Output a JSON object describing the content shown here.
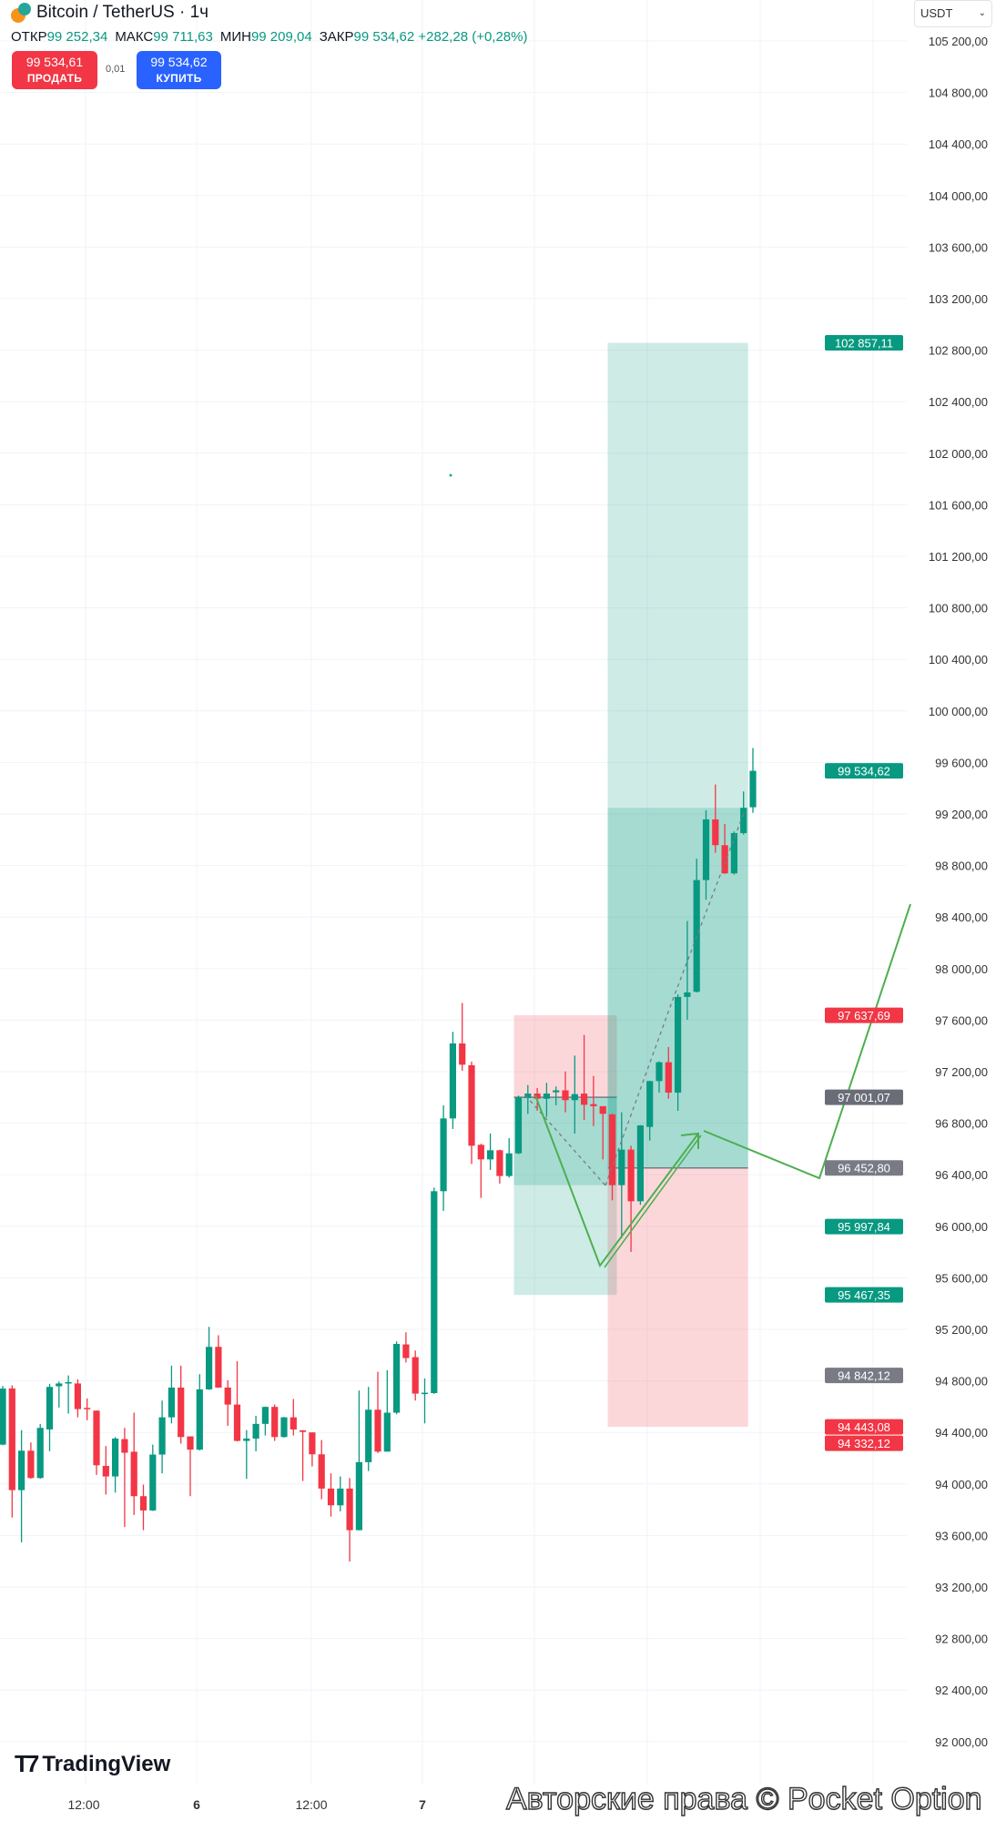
{
  "header": {
    "symbol": "Bitcoin / TetherUS · 1ч",
    "ohlc": [
      {
        "label": "ОТКР",
        "value": "99 252,34"
      },
      {
        "label": "МАКС",
        "value": "99 711,63"
      },
      {
        "label": "МИН",
        "value": "99 209,04"
      },
      {
        "label": "ЗАКР",
        "value": "99 534,62 +282,28 (+0,28%)"
      }
    ],
    "sell": {
      "price": "99 534,61",
      "label": "ПРОДАТЬ"
    },
    "spread": "0,01",
    "buy": {
      "price": "99 534,62",
      "label": "КУПИТЬ"
    }
  },
  "currency_select": {
    "value": "USDT",
    "icon": "chevron-down-icon"
  },
  "branding": {
    "logo": "TradingView",
    "watermark": "Авторские права © Pocket Option"
  },
  "colors": {
    "up": "#089981",
    "down": "#f23645",
    "neutral": "#787b86",
    "buy": "#2962ff",
    "drawing": "#4caf50"
  },
  "chart_data": {
    "type": "candlestick",
    "interval": "1ч",
    "ylim": [
      92000,
      105200
    ],
    "y_ticks": [
      "105 200,00",
      "104 800,00",
      "104 400,00",
      "104 000,00",
      "103 600,00",
      "103 200,00",
      "102 800,00",
      "102 400,00",
      "102 000,00",
      "101 600,00",
      "101 200,00",
      "100 800,00",
      "100 400,00",
      "100 000,00",
      "99 600,00",
      "99 200,00",
      "98 800,00",
      "98 400,00",
      "98 000,00",
      "97 600,00",
      "97 200,00",
      "96 800,00",
      "96 400,00",
      "96 000,00",
      "95 600,00",
      "95 200,00",
      "94 800,00",
      "94 400,00",
      "94 000,00",
      "93 600,00",
      "93 200,00",
      "92 800,00",
      "92 400,00",
      "92 000,00"
    ],
    "x_ticks": [
      "12:00",
      "6",
      "12:00",
      "7"
    ],
    "grid": true,
    "candles": [
      [
        94305,
        94760,
        94300,
        94740
      ],
      [
        94741,
        94765,
        93740,
        93952
      ],
      [
        93952,
        94418,
        93547,
        94258
      ],
      [
        94258,
        94322,
        94040,
        94046
      ],
      [
        94046,
        94466,
        94040,
        94435
      ],
      [
        94423,
        94777,
        94254,
        94753
      ],
      [
        94758,
        94795,
        94593,
        94780
      ],
      [
        94788,
        94842,
        94546,
        94790
      ],
      [
        94780,
        94812,
        94517,
        94581
      ],
      [
        94590,
        94664,
        94494,
        94588
      ],
      [
        94569,
        94570,
        94070,
        94145
      ],
      [
        94140,
        94294,
        93917,
        94058
      ],
      [
        94058,
        94364,
        93933,
        94352
      ],
      [
        94348,
        94435,
        93665,
        94242
      ],
      [
        94250,
        94553,
        93759,
        93905
      ],
      [
        93905,
        93995,
        93641,
        93794
      ],
      [
        93794,
        94305,
        93790,
        94228
      ],
      [
        94228,
        94647,
        94082,
        94517
      ],
      [
        94517,
        94918,
        94470,
        94748
      ],
      [
        94748,
        94918,
        94313,
        94364
      ],
      [
        94369,
        94369,
        93905,
        94266
      ],
      [
        94266,
        94852,
        94260,
        94734
      ],
      [
        94734,
        95219,
        94730,
        95064
      ],
      [
        95064,
        95154,
        94745,
        94748
      ],
      [
        94748,
        94805,
        94451,
        94616
      ],
      [
        94616,
        94953,
        94330,
        94334
      ],
      [
        94334,
        94418,
        94039,
        94352
      ],
      [
        94352,
        94529,
        94253,
        94466
      ],
      [
        94466,
        94600,
        94376,
        94598
      ],
      [
        94598,
        94616,
        94334,
        94364
      ],
      [
        94364,
        94520,
        94360,
        94517
      ],
      [
        94517,
        94659,
        94376,
        94423
      ],
      [
        94416,
        94418,
        94023,
        94404
      ],
      [
        94400,
        94400,
        94136,
        94230
      ],
      [
        94230,
        94341,
        93881,
        93964
      ],
      [
        93964,
        94082,
        93747,
        93834
      ],
      [
        93834,
        94058,
        93787,
        93964
      ],
      [
        93964,
        94046,
        93398,
        93641
      ],
      [
        93641,
        94725,
        93640,
        94169
      ],
      [
        94169,
        94753,
        94100,
        94576
      ],
      [
        94576,
        94871,
        94240,
        94251
      ],
      [
        94251,
        94883,
        94250,
        94553
      ],
      [
        94553,
        95106,
        94541,
        95087
      ],
      [
        95083,
        95177,
        94942,
        94977
      ],
      [
        94984,
        95036,
        94647,
        94701
      ],
      [
        94705,
        94819,
        94470,
        94708
      ],
      [
        94705,
        96300,
        94700,
        96272
      ],
      [
        96272,
        96939,
        96119,
        96837
      ],
      [
        96837,
        97509,
        96755,
        97419
      ],
      [
        97419,
        97733,
        97207,
        97254
      ],
      [
        97250,
        97278,
        96484,
        96625
      ],
      [
        96632,
        96640,
        96220,
        96519
      ],
      [
        96519,
        96720,
        96437,
        96590
      ],
      [
        96590,
        96595,
        96331,
        96390
      ],
      [
        96390,
        96684,
        96378,
        96566
      ],
      [
        96566,
        97014,
        96560,
        97002
      ],
      [
        96995,
        97096,
        96873,
        97030
      ],
      [
        97030,
        97073,
        96896,
        96990
      ],
      [
        96990,
        97113,
        96849,
        97030
      ],
      [
        97040,
        97085,
        96939,
        97055
      ],
      [
        97055,
        97202,
        96885,
        96979
      ],
      [
        96979,
        97325,
        96720,
        97026
      ],
      [
        97030,
        97485,
        96825,
        96943
      ],
      [
        96948,
        97167,
        96778,
        96932
      ],
      [
        96932,
        96932,
        96519,
        96873
      ],
      [
        96868,
        96875,
        96201,
        96319
      ],
      [
        96319,
        96885,
        95907,
        96595
      ],
      [
        96595,
        96625,
        95801,
        96194
      ],
      [
        96194,
        96785,
        96166,
        96783
      ],
      [
        96771,
        97130,
        96665,
        97127
      ],
      [
        97127,
        97280,
        97037,
        97273
      ],
      [
        97273,
        97391,
        96990,
        97037
      ],
      [
        97037,
        97800,
        96896,
        97780
      ],
      [
        97780,
        98369,
        97603,
        97815
      ],
      [
        97820,
        98853,
        97815,
        98687
      ],
      [
        98687,
        99229,
        98534,
        99158
      ],
      [
        99158,
        99429,
        98899,
        98958
      ],
      [
        98958,
        99123,
        98735,
        98739
      ],
      [
        98739,
        99064,
        98730,
        99052
      ],
      [
        99052,
        99375,
        99040,
        99248
      ],
      [
        99252,
        99712,
        99209,
        99535
      ]
    ],
    "positions": [
      {
        "type": "short",
        "entry": 97001.07,
        "stop": 97637.69,
        "target": 95467.35,
        "from_bar": 55,
        "to_bar": 65
      },
      {
        "type": "long",
        "entry": 96452.8,
        "stop": 94443.08,
        "target": 102857.11,
        "from_bar": 65,
        "to_bar": 79
      }
    ],
    "price_tags": [
      {
        "price": 102857.11,
        "text": "102 857,11",
        "color": "#089981"
      },
      {
        "price": 99534.62,
        "text": "99 534,62",
        "color": "#089981"
      },
      {
        "price": 97637.69,
        "text": "97 637,69",
        "color": "#f23645"
      },
      {
        "price": 97001.07,
        "text": "97 001,07",
        "color": "#6a6d78"
      },
      {
        "price": 96452.8,
        "text": "96 452,80",
        "color": "#787b86"
      },
      {
        "price": 95997.84,
        "text": "95 997,84",
        "color": "#089981"
      },
      {
        "price": 95467.35,
        "text": "95 467,35",
        "color": "#089981"
      },
      {
        "price": 94842.12,
        "text": "94 842,12",
        "color": "#787b86"
      },
      {
        "price": 94443.08,
        "text": "94 443,08",
        "color": "#f23645"
      },
      {
        "price": 94332.12,
        "text": "94 332,12",
        "color": "#f23645"
      }
    ]
  }
}
